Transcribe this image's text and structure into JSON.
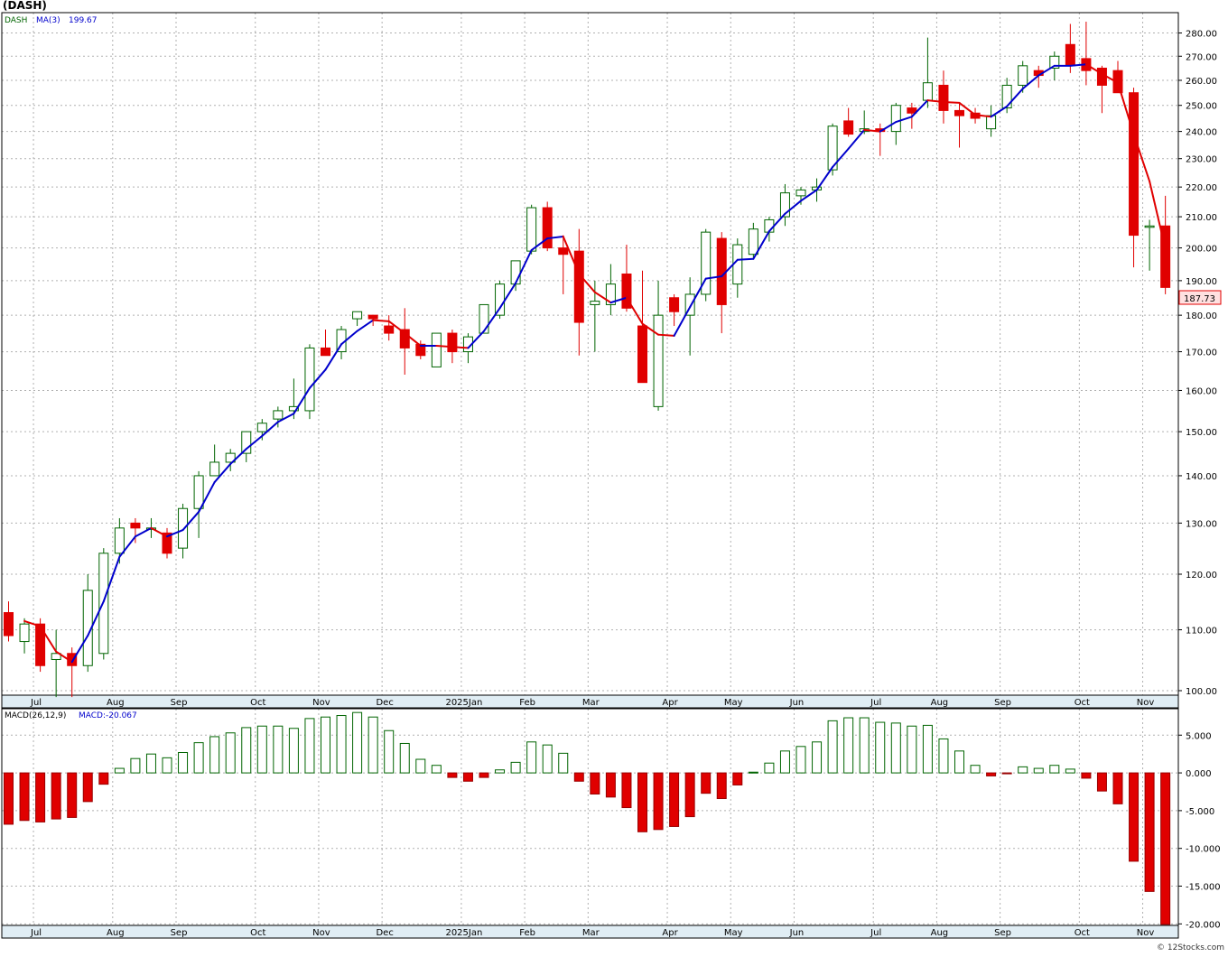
{
  "title": "(DASH)",
  "legend": {
    "symbol": "DASH",
    "ma_label": "MA(3)",
    "ma_value": "199.67",
    "macd_label": "MACD(26,12,9)",
    "macd_value_label": "MACD:-20.067"
  },
  "last_price_label": "187.73",
  "credit": "© 12Stocks.com",
  "colors": {
    "up": "#006400",
    "down": "#e00000",
    "ma_up": "#0000cc",
    "ma_down": "#e00000",
    "grid": "#b0b0b0",
    "axis_band": "#e0edf4"
  },
  "x_axis_labels": [
    "Jul",
    "Aug",
    "Sep",
    "Oct",
    "Nov",
    "Dec",
    "2025Jan",
    "Feb",
    "Mar",
    "Apr",
    "May",
    "Jun",
    "Jul",
    "Aug",
    "Sep",
    "Oct",
    "Nov"
  ],
  "chart_data": [
    {
      "type": "candlestick",
      "scale": "log",
      "ylim": [
        100,
        283
      ],
      "y_ticks": [
        "100.00",
        "110.00",
        "120.00",
        "130.00",
        "140.00",
        "150.00",
        "160.00",
        "170.00",
        "180.00",
        "190.00",
        "200.00",
        "210.00",
        "220.00",
        "230.00",
        "240.00",
        "250.00",
        "260.00",
        "270.00",
        "280.00"
      ],
      "x_tick_index": [
        1,
        6,
        10,
        15,
        19,
        23,
        28,
        32,
        36,
        41,
        45,
        49,
        54,
        58,
        62,
        67,
        71
      ],
      "candles": [
        {
          "o": 113,
          "h": 115,
          "l": 108,
          "c": 109
        },
        {
          "o": 108,
          "h": 112,
          "l": 106,
          "c": 111
        },
        {
          "o": 111,
          "h": 112,
          "l": 103,
          "c": 104
        },
        {
          "o": 105,
          "h": 110,
          "l": 99,
          "c": 106
        },
        {
          "o": 106,
          "h": 107,
          "l": 99,
          "c": 104
        },
        {
          "o": 104,
          "h": 120,
          "l": 103,
          "c": 117
        },
        {
          "o": 106,
          "h": 125,
          "l": 105,
          "c": 124
        },
        {
          "o": 124,
          "h": 131,
          "l": 122,
          "c": 129
        },
        {
          "o": 130,
          "h": 131,
          "l": 126,
          "c": 129
        },
        {
          "o": 129,
          "h": 131,
          "l": 127,
          "c": 129
        },
        {
          "o": 128,
          "h": 129,
          "l": 123,
          "c": 124
        },
        {
          "o": 125,
          "h": 134,
          "l": 123,
          "c": 133
        },
        {
          "o": 133,
          "h": 141,
          "l": 127,
          "c": 140
        },
        {
          "o": 140,
          "h": 147,
          "l": 140,
          "c": 143
        },
        {
          "o": 143,
          "h": 146,
          "l": 141,
          "c": 145
        },
        {
          "o": 145,
          "h": 150,
          "l": 143,
          "c": 150
        },
        {
          "o": 150,
          "h": 153,
          "l": 148,
          "c": 152
        },
        {
          "o": 153,
          "h": 156,
          "l": 151,
          "c": 155
        },
        {
          "o": 155,
          "h": 163,
          "l": 153,
          "c": 156
        },
        {
          "o": 155,
          "h": 172,
          "l": 153,
          "c": 171
        },
        {
          "o": 171,
          "h": 176,
          "l": 169,
          "c": 169
        },
        {
          "o": 170,
          "h": 177,
          "l": 168,
          "c": 176
        },
        {
          "o": 179,
          "h": 181,
          "l": 177,
          "c": 181
        },
        {
          "o": 180,
          "h": 180,
          "l": 177,
          "c": 179
        },
        {
          "o": 177,
          "h": 180,
          "l": 173,
          "c": 175
        },
        {
          "o": 176,
          "h": 182,
          "l": 164,
          "c": 171
        },
        {
          "o": 172,
          "h": 173,
          "l": 168,
          "c": 169
        },
        {
          "o": 166,
          "h": 175,
          "l": 166,
          "c": 175
        },
        {
          "o": 175,
          "h": 176,
          "l": 167,
          "c": 170
        },
        {
          "o": 170,
          "h": 175,
          "l": 167,
          "c": 174
        },
        {
          "o": 175,
          "h": 183,
          "l": 175,
          "c": 183
        },
        {
          "o": 180,
          "h": 190,
          "l": 179,
          "c": 189
        },
        {
          "o": 189,
          "h": 196,
          "l": 187,
          "c": 196
        },
        {
          "o": 199,
          "h": 214,
          "l": 198,
          "c": 213
        },
        {
          "o": 213,
          "h": 215,
          "l": 199,
          "c": 200
        },
        {
          "o": 200,
          "h": 204,
          "l": 186,
          "c": 198
        },
        {
          "o": 199,
          "h": 206,
          "l": 169,
          "c": 178
        },
        {
          "o": 183,
          "h": 190,
          "l": 170,
          "c": 184
        },
        {
          "o": 183,
          "h": 195,
          "l": 180,
          "c": 189
        },
        {
          "o": 192,
          "h": 201,
          "l": 181,
          "c": 182
        },
        {
          "o": 177,
          "h": 193,
          "l": 162,
          "c": 162
        },
        {
          "o": 156,
          "h": 190,
          "l": 155,
          "c": 180
        },
        {
          "o": 185,
          "h": 186,
          "l": 177,
          "c": 181
        },
        {
          "o": 180,
          "h": 191,
          "l": 169,
          "c": 186
        },
        {
          "o": 186,
          "h": 206,
          "l": 184,
          "c": 205
        },
        {
          "o": 203,
          "h": 205,
          "l": 175,
          "c": 183
        },
        {
          "o": 189,
          "h": 203,
          "l": 185,
          "c": 201
        },
        {
          "o": 198,
          "h": 208,
          "l": 197,
          "c": 206
        },
        {
          "o": 205,
          "h": 210,
          "l": 202,
          "c": 209
        },
        {
          "o": 210,
          "h": 221,
          "l": 207,
          "c": 218
        },
        {
          "o": 217,
          "h": 220,
          "l": 214,
          "c": 219
        },
        {
          "o": 219,
          "h": 223,
          "l": 215,
          "c": 220
        },
        {
          "o": 226,
          "h": 243,
          "l": 224,
          "c": 242
        },
        {
          "o": 244,
          "h": 249,
          "l": 238,
          "c": 239
        },
        {
          "o": 240,
          "h": 248,
          "l": 239,
          "c": 241
        },
        {
          "o": 241,
          "h": 243,
          "l": 231,
          "c": 240
        },
        {
          "o": 240,
          "h": 251,
          "l": 235,
          "c": 250
        },
        {
          "o": 249,
          "h": 251,
          "l": 241,
          "c": 247
        },
        {
          "o": 252,
          "h": 278,
          "l": 249,
          "c": 259
        },
        {
          "o": 258,
          "h": 264,
          "l": 243,
          "c": 248
        },
        {
          "o": 248,
          "h": 251,
          "l": 234,
          "c": 246
        },
        {
          "o": 247,
          "h": 249,
          "l": 243,
          "c": 245
        },
        {
          "o": 241,
          "h": 250,
          "l": 238,
          "c": 246
        },
        {
          "o": 249,
          "h": 261,
          "l": 247,
          "c": 258
        },
        {
          "o": 258,
          "h": 268,
          "l": 255,
          "c": 266
        },
        {
          "o": 264,
          "h": 266,
          "l": 257,
          "c": 262
        },
        {
          "o": 265,
          "h": 272,
          "l": 260,
          "c": 270
        },
        {
          "o": 275,
          "h": 284,
          "l": 263,
          "c": 266
        },
        {
          "o": 269,
          "h": 285,
          "l": 258,
          "c": 264
        },
        {
          "o": 265,
          "h": 266,
          "l": 247,
          "c": 258
        },
        {
          "o": 264,
          "h": 268,
          "l": 256,
          "c": 255
        },
        {
          "o": 255,
          "h": 257,
          "l": 194,
          "c": 204
        },
        {
          "o": 207,
          "h": 209,
          "l": 193,
          "c": 207
        },
        {
          "o": 207,
          "h": 217,
          "l": 186,
          "c": 188
        }
      ],
      "ma": [
        null,
        111.5,
        110.6,
        106.3,
        104.6,
        109.0,
        115.0,
        123.3,
        127.3,
        129.0,
        127.3,
        128.6,
        132.3,
        138.6,
        142.6,
        146.0,
        149.0,
        152.3,
        154.3,
        160.6,
        165.3,
        172.0,
        175.6,
        178.6,
        178.3,
        175.0,
        171.6,
        171.6,
        171.3,
        171.0,
        175.6,
        182.0,
        189.3,
        199.3,
        203.0,
        203.6,
        192.0,
        186.6,
        183.6,
        185.0,
        177.6,
        174.6,
        174.3,
        182.3,
        190.6,
        191.3,
        196.3,
        196.6,
        205.3,
        211.0,
        215.3,
        219.0,
        227.0,
        233.6,
        240.6,
        240.0,
        243.6,
        245.6,
        252.0,
        251.3,
        251.0,
        246.3,
        245.6,
        249.6,
        256.6,
        262.0,
        266.0,
        266.0,
        266.6,
        262.6,
        259.0,
        239.0,
        222.0,
        199.67
      ]
    },
    {
      "type": "bar",
      "name": "MACD(26,12,9)",
      "ylim": [
        -20.2,
        8.5
      ],
      "y_ticks": [
        5,
        0,
        -5,
        -10,
        -15,
        -20
      ],
      "y_tick_labels": [
        "5.000",
        "0.000",
        "-5.000",
        "-10.000",
        "-15.000",
        "-20.000"
      ],
      "values": [
        -6.8,
        -6.3,
        -6.5,
        -6.1,
        -5.9,
        -3.8,
        -1.5,
        0.6,
        1.9,
        2.5,
        2.0,
        2.7,
        4.0,
        4.8,
        5.3,
        6.0,
        6.2,
        6.2,
        5.9,
        7.2,
        7.4,
        7.6,
        8.0,
        7.4,
        5.6,
        3.9,
        1.8,
        1.0,
        -0.6,
        -1.1,
        -0.6,
        0.4,
        1.4,
        4.1,
        3.7,
        2.6,
        -1.1,
        -2.8,
        -3.2,
        -4.6,
        -7.8,
        -7.5,
        -7.1,
        -5.8,
        -2.7,
        -3.4,
        -1.6,
        0.1,
        1.3,
        2.9,
        3.5,
        4.1,
        6.9,
        7.3,
        7.3,
        6.7,
        6.6,
        6.2,
        6.3,
        4.5,
        2.9,
        1.0,
        -0.4,
        -0.1,
        0.8,
        0.6,
        1.0,
        0.5,
        -0.7,
        -2.4,
        -4.1,
        -11.7,
        -15.7,
        -20.067
      ]
    }
  ]
}
